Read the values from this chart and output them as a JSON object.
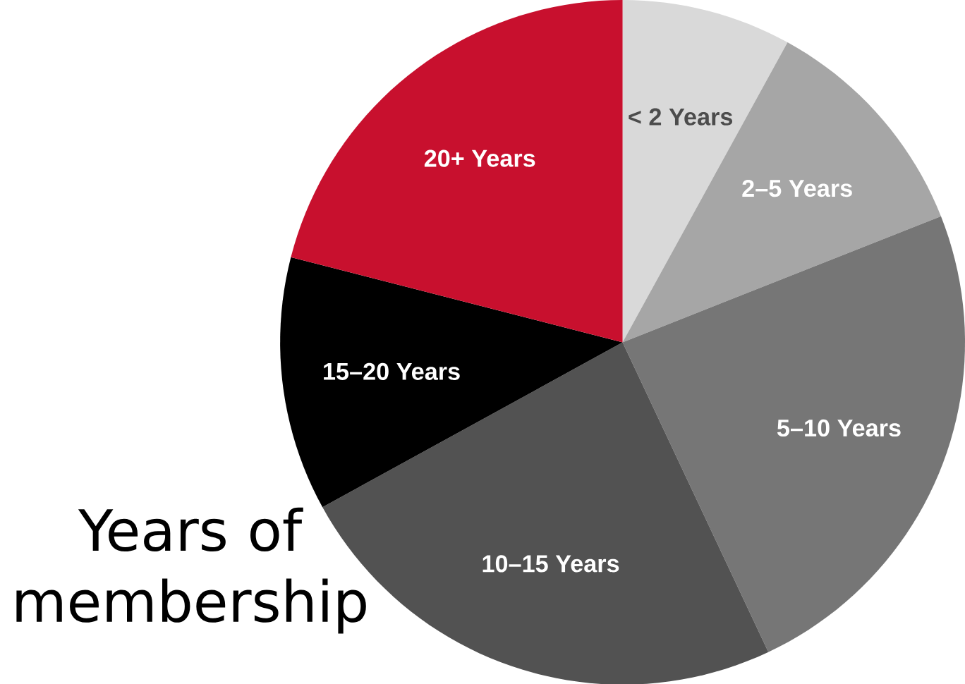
{
  "chart_data": {
    "type": "pie",
    "title": "Years of membership",
    "categories": [
      "< 2 Years",
      "2–5 Years",
      "5–10 Years",
      "10–15 Years",
      "15–20 Years",
      "20+ Years"
    ],
    "values": [
      8,
      11,
      24,
      24,
      12,
      21
    ],
    "colors": [
      "#d9d9d9",
      "#a6a6a6",
      "#767676",
      "#525252",
      "#000000",
      "#c8102e"
    ]
  }
}
